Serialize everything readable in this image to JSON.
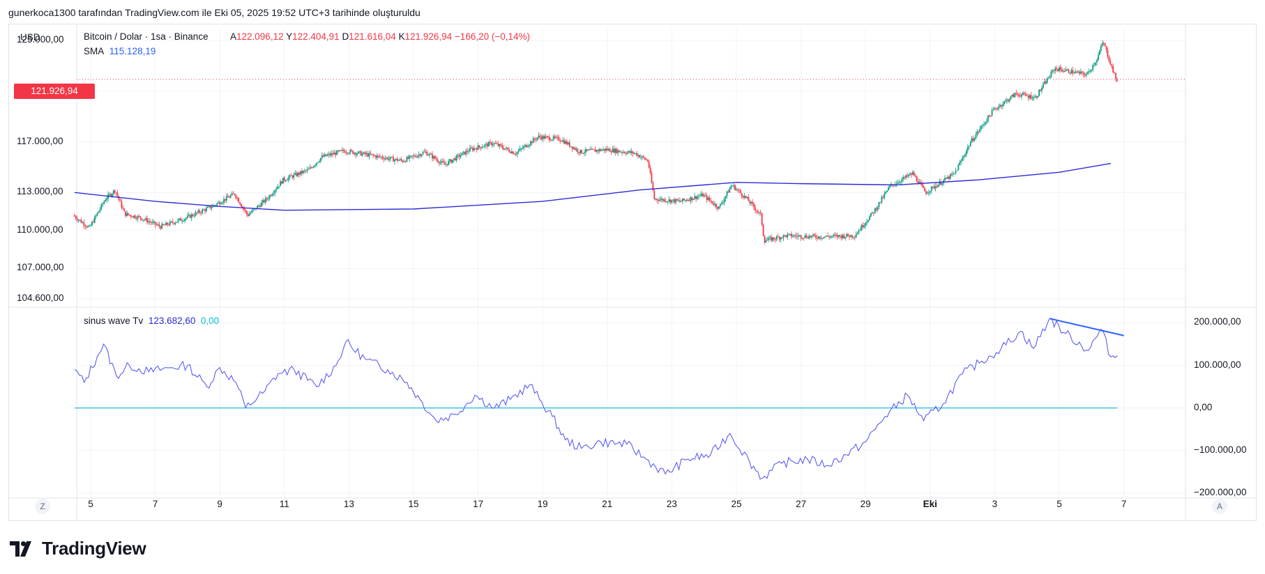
{
  "header": "gunerkoca1300 tarafından TradingView.com ile Eki 05, 2025 19:52 UTC+3 tarihinde oluşturuldu",
  "currency": "USD",
  "legend": {
    "title": "Bitcoin / Dolar · 1sa · Binance",
    "open_label": "A",
    "open": "122.096,12",
    "high_label": "Y",
    "high": "122.404,91",
    "low_label": "D",
    "low": "121.616,04",
    "close_label": "K",
    "close": "121.926,94",
    "change": "−166,20 (−0,14%)",
    "sma_label": "SMA",
    "sma_value": "115.128,19",
    "sine_label": "sinus wave Tv",
    "sine_value": "123.682,60",
    "sine_zero": "0,00"
  },
  "last_price_tag": "121.926,94",
  "brand": "TradingView",
  "colors": {
    "up": "#089981",
    "down": "#f23645",
    "sma": "#2b2bd6",
    "oscillator": "#5b5bf0",
    "zero_line": "#22b7e8",
    "trendline": "#2962ff",
    "grid": "#f0f3fa"
  },
  "chart_data": [
    {
      "type": "candlestick",
      "title": "Bitcoin / Dolar · 1sa · Binance",
      "y_ticks": [
        "125.000,00",
        "121.000,00",
        "117.000,00",
        "113.000,00",
        "110.000,00",
        "107.000,00",
        "104.600,00"
      ],
      "y_tick_values": [
        125000,
        121000,
        117000,
        113000,
        110000,
        107000,
        104600
      ],
      "x_ticks": [
        "5",
        "7",
        "9",
        "11",
        "13",
        "15",
        "17",
        "19",
        "21",
        "23",
        "25",
        "27",
        "29",
        "Eki",
        "3",
        "5",
        "7"
      ],
      "ylim": [
        104000,
        126000
      ],
      "price_path": [
        {
          "day": 4.5,
          "price": 111200
        },
        {
          "day": 5.0,
          "price": 110200
        },
        {
          "day": 5.5,
          "price": 112500
        },
        {
          "day": 5.8,
          "price": 113200
        },
        {
          "day": 6.1,
          "price": 111300
        },
        {
          "day": 6.6,
          "price": 111000
        },
        {
          "day": 7.2,
          "price": 110300
        },
        {
          "day": 8.0,
          "price": 111000
        },
        {
          "day": 8.8,
          "price": 111900
        },
        {
          "day": 9.5,
          "price": 112900
        },
        {
          "day": 9.9,
          "price": 111200
        },
        {
          "day": 10.5,
          "price": 112500
        },
        {
          "day": 11.0,
          "price": 114000
        },
        {
          "day": 11.8,
          "price": 114800
        },
        {
          "day": 12.2,
          "price": 115800
        },
        {
          "day": 12.9,
          "price": 116300
        },
        {
          "day": 13.8,
          "price": 115900
        },
        {
          "day": 14.7,
          "price": 115500
        },
        {
          "day": 15.4,
          "price": 116200
        },
        {
          "day": 16.0,
          "price": 115200
        },
        {
          "day": 16.8,
          "price": 116400
        },
        {
          "day": 17.5,
          "price": 116900
        },
        {
          "day": 18.2,
          "price": 116100
        },
        {
          "day": 18.9,
          "price": 117400
        },
        {
          "day": 19.6,
          "price": 117200
        },
        {
          "day": 20.2,
          "price": 116200
        },
        {
          "day": 21.0,
          "price": 116400
        },
        {
          "day": 21.9,
          "price": 116100
        },
        {
          "day": 22.3,
          "price": 115500
        },
        {
          "day": 22.5,
          "price": 112500
        },
        {
          "day": 23.3,
          "price": 112300
        },
        {
          "day": 24.0,
          "price": 112800
        },
        {
          "day": 24.5,
          "price": 111800
        },
        {
          "day": 24.9,
          "price": 113600
        },
        {
          "day": 25.4,
          "price": 112400
        },
        {
          "day": 25.8,
          "price": 111200
        },
        {
          "day": 25.9,
          "price": 109200
        },
        {
          "day": 26.6,
          "price": 109600
        },
        {
          "day": 27.6,
          "price": 109500
        },
        {
          "day": 28.7,
          "price": 109600
        },
        {
          "day": 29.3,
          "price": 111500
        },
        {
          "day": 29.8,
          "price": 113500
        },
        {
          "day": 30.5,
          "price": 114500
        },
        {
          "day": 30.9,
          "price": 113000
        },
        {
          "day": 31.8,
          "price": 114500
        },
        {
          "day": 32.3,
          "price": 117000
        },
        {
          "day": 33.0,
          "price": 119500
        },
        {
          "day": 33.7,
          "price": 120800
        },
        {
          "day": 34.3,
          "price": 120500
        },
        {
          "day": 34.9,
          "price": 122800
        },
        {
          "day": 35.9,
          "price": 122300
        },
        {
          "day": 36.2,
          "price": 123500
        },
        {
          "day": 36.4,
          "price": 124900
        },
        {
          "day": 36.8,
          "price": 121900
        }
      ],
      "overlay": {
        "name": "SMA",
        "points": [
          {
            "day": 4.5,
            "price": 113000
          },
          {
            "day": 7.0,
            "price": 112300
          },
          {
            "day": 9.0,
            "price": 111900
          },
          {
            "day": 11.0,
            "price": 111600
          },
          {
            "day": 15.0,
            "price": 111700
          },
          {
            "day": 19.0,
            "price": 112300
          },
          {
            "day": 22.0,
            "price": 113200
          },
          {
            "day": 25.0,
            "price": 113800
          },
          {
            "day": 27.0,
            "price": 113700
          },
          {
            "day": 30.0,
            "price": 113600
          },
          {
            "day": 32.5,
            "price": 114000
          },
          {
            "day": 35.0,
            "price": 114600
          },
          {
            "day": 36.6,
            "price": 115300
          }
        ]
      },
      "last_price": 121926.94
    },
    {
      "type": "line",
      "title": "sinus wave Tv",
      "y_ticks": [
        "200.000,00",
        "100.000,00",
        "0,00",
        "−100.000,00",
        "−200.000,00"
      ],
      "y_tick_values": [
        200000,
        100000,
        0,
        -100000,
        -200000
      ],
      "ylim": [
        -210000,
        235000
      ],
      "series": [
        {
          "name": "sinus wave Tv",
          "points": [
            {
              "day": 4.5,
              "value": 90000
            },
            {
              "day": 4.8,
              "value": 60000
            },
            {
              "day": 5.2,
              "value": 120000
            },
            {
              "day": 5.4,
              "value": 150000
            },
            {
              "day": 5.8,
              "value": 75000
            },
            {
              "day": 6.2,
              "value": 100000
            },
            {
              "day": 6.8,
              "value": 85000
            },
            {
              "day": 7.5,
              "value": 95000
            },
            {
              "day": 8.0,
              "value": 100000
            },
            {
              "day": 8.6,
              "value": 50000
            },
            {
              "day": 9.0,
              "value": 95000
            },
            {
              "day": 9.5,
              "value": 60000
            },
            {
              "day": 9.8,
              "value": 0
            },
            {
              "day": 10.4,
              "value": 40000
            },
            {
              "day": 10.8,
              "value": 80000
            },
            {
              "day": 11.3,
              "value": 90000
            },
            {
              "day": 12.0,
              "value": 50000
            },
            {
              "day": 12.6,
              "value": 100000
            },
            {
              "day": 12.9,
              "value": 155000
            },
            {
              "day": 13.5,
              "value": 115000
            },
            {
              "day": 14.2,
              "value": 90000
            },
            {
              "day": 14.8,
              "value": 60000
            },
            {
              "day": 15.2,
              "value": 20000
            },
            {
              "day": 15.7,
              "value": -30000
            },
            {
              "day": 16.3,
              "value": -15000
            },
            {
              "day": 16.9,
              "value": 30000
            },
            {
              "day": 17.5,
              "value": 0
            },
            {
              "day": 18.0,
              "value": 20000
            },
            {
              "day": 18.6,
              "value": 55000
            },
            {
              "day": 18.9,
              "value": 20000
            },
            {
              "day": 19.3,
              "value": -20000
            },
            {
              "day": 19.7,
              "value": -75000
            },
            {
              "day": 20.2,
              "value": -95000
            },
            {
              "day": 20.8,
              "value": -80000
            },
            {
              "day": 21.6,
              "value": -85000
            },
            {
              "day": 22.2,
              "value": -120000
            },
            {
              "day": 22.8,
              "value": -155000
            },
            {
              "day": 23.5,
              "value": -120000
            },
            {
              "day": 24.2,
              "value": -110000
            },
            {
              "day": 24.8,
              "value": -60000
            },
            {
              "day": 25.4,
              "value": -125000
            },
            {
              "day": 25.8,
              "value": -165000
            },
            {
              "day": 26.4,
              "value": -130000
            },
            {
              "day": 27.2,
              "value": -120000
            },
            {
              "day": 27.8,
              "value": -135000
            },
            {
              "day": 28.4,
              "value": -110000
            },
            {
              "day": 29.0,
              "value": -80000
            },
            {
              "day": 29.6,
              "value": -20000
            },
            {
              "day": 30.3,
              "value": 30000
            },
            {
              "day": 30.8,
              "value": -30000
            },
            {
              "day": 31.4,
              "value": 10000
            },
            {
              "day": 32.0,
              "value": 80000
            },
            {
              "day": 32.6,
              "value": 110000
            },
            {
              "day": 33.2,
              "value": 140000
            },
            {
              "day": 33.8,
              "value": 180000
            },
            {
              "day": 34.2,
              "value": 140000
            },
            {
              "day": 34.7,
              "value": 210000
            },
            {
              "day": 35.2,
              "value": 175000
            },
            {
              "day": 35.9,
              "value": 135000
            },
            {
              "day": 36.3,
              "value": 185000
            },
            {
              "day": 36.6,
              "value": 120000
            },
            {
              "day": 36.8,
              "value": 123000
            }
          ]
        },
        {
          "name": "0,00",
          "points": [
            {
              "day": 4.5,
              "value": 0
            },
            {
              "day": 36.8,
              "value": 0
            }
          ]
        }
      ],
      "trendline": [
        {
          "day": 34.7,
          "value": 210000
        },
        {
          "day": 37.0,
          "value": 170000
        }
      ]
    }
  ]
}
